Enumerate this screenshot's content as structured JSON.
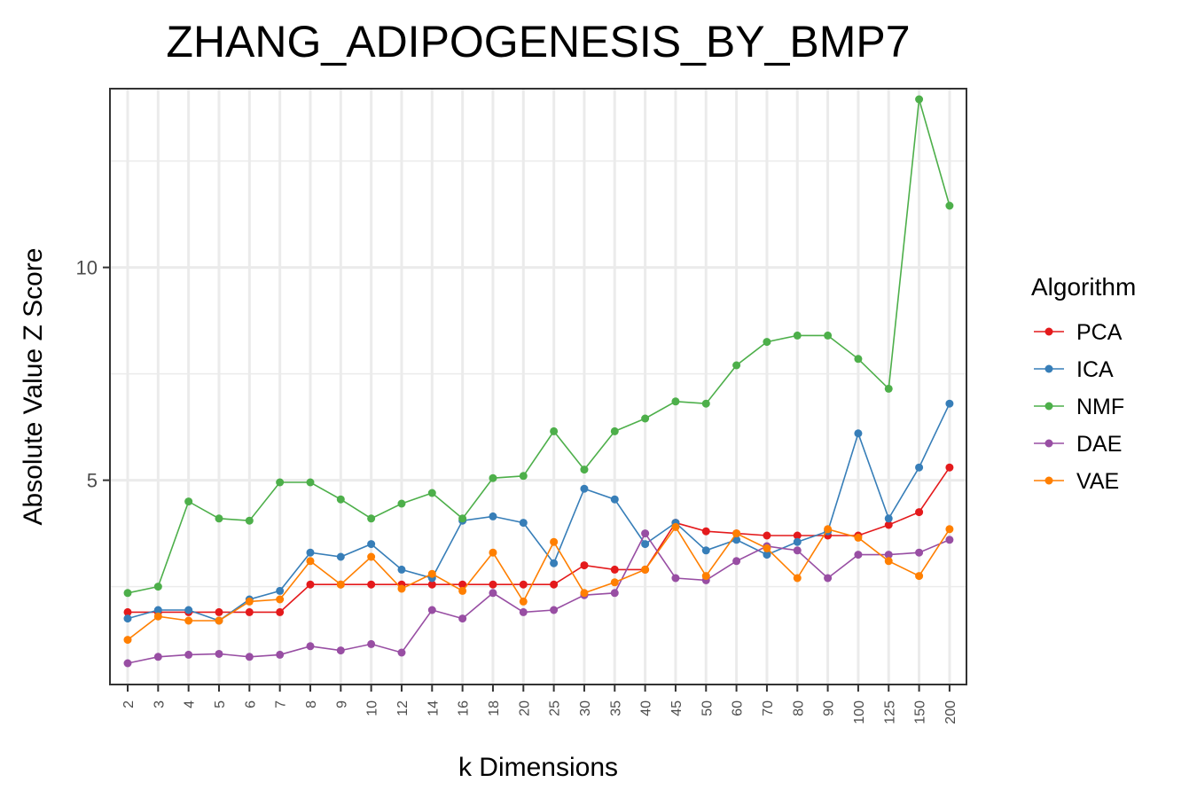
{
  "chart_data": {
    "type": "line",
    "title": "ZHANG_ADIPOGENESIS_BY_BMP7",
    "xlabel": "k Dimensions",
    "ylabel": "Absolute Value Z Score",
    "categories": [
      "2",
      "3",
      "4",
      "5",
      "6",
      "7",
      "8",
      "9",
      "10",
      "12",
      "14",
      "16",
      "18",
      "20",
      "25",
      "30",
      "35",
      "40",
      "45",
      "50",
      "60",
      "70",
      "80",
      "90",
      "100",
      "125",
      "150",
      "200"
    ],
    "yticks": [
      5,
      10
    ],
    "ylim": [
      0.2,
      14.2
    ],
    "grid": true,
    "legend": {
      "title": "Algorithm",
      "position": "right"
    },
    "series": [
      {
        "name": "PCA",
        "color": "#E41A1C",
        "values": [
          1.9,
          1.9,
          1.9,
          1.9,
          1.9,
          1.9,
          2.55,
          2.55,
          2.55,
          2.55,
          2.55,
          2.55,
          2.55,
          2.55,
          2.55,
          3.0,
          2.9,
          2.9,
          4.0,
          3.8,
          3.75,
          3.7,
          3.7,
          3.7,
          3.7,
          3.95,
          4.25,
          5.3
        ]
      },
      {
        "name": "ICA",
        "color": "#377EB8",
        "values": [
          1.75,
          1.95,
          1.95,
          1.7,
          2.2,
          2.4,
          3.3,
          3.2,
          3.5,
          2.9,
          2.7,
          4.05,
          4.15,
          4.0,
          3.05,
          4.8,
          4.55,
          3.5,
          4.0,
          3.35,
          3.6,
          3.25,
          3.55,
          3.8,
          6.1,
          4.1,
          5.3,
          6.8
        ]
      },
      {
        "name": "NMF",
        "color": "#4DAF4A",
        "values": [
          2.35,
          2.5,
          4.5,
          4.1,
          4.05,
          4.95,
          4.95,
          4.55,
          4.1,
          4.45,
          4.7,
          4.1,
          5.05,
          5.1,
          6.15,
          5.25,
          6.15,
          6.45,
          6.85,
          6.8,
          7.7,
          8.25,
          8.4,
          8.4,
          7.85,
          7.15,
          13.95,
          11.45
        ]
      },
      {
        "name": "DAE",
        "color": "#984EA3",
        "values": [
          0.7,
          0.85,
          0.9,
          0.92,
          0.85,
          0.9,
          1.1,
          1.0,
          1.15,
          0.95,
          1.95,
          1.75,
          2.35,
          1.9,
          1.95,
          2.3,
          2.35,
          3.75,
          2.7,
          2.65,
          3.1,
          3.45,
          3.35,
          2.7,
          3.25,
          3.25,
          3.3,
          3.6
        ]
      },
      {
        "name": "VAE",
        "color": "#FF7F00",
        "values": [
          1.25,
          1.8,
          1.7,
          1.7,
          2.15,
          2.2,
          3.1,
          2.55,
          3.2,
          2.45,
          2.8,
          2.4,
          3.3,
          2.15,
          3.55,
          2.35,
          2.6,
          2.9,
          3.9,
          2.75,
          3.75,
          3.4,
          2.7,
          3.85,
          3.65,
          3.1,
          2.75,
          3.85
        ]
      }
    ]
  }
}
